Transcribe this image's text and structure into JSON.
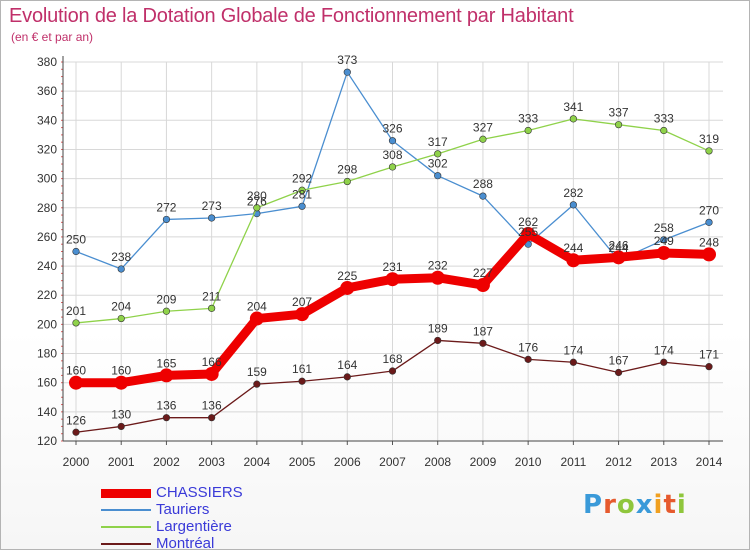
{
  "title": "Evolution de la Dotation Globale de Fonctionnement par Habitant",
  "subtitle": "(en € et par an)",
  "logo": {
    "text": "Proxiti",
    "colors": [
      "#3a9ad9",
      "#e65a2e",
      "#8fc63c",
      "#3a9ad9",
      "#f0a020",
      "#e65a2e",
      "#8fc63c"
    ]
  },
  "chart_data": {
    "type": "line",
    "x": [
      "2000",
      "2001",
      "2002",
      "2003",
      "2004",
      "2005",
      "2006",
      "2007",
      "2008",
      "2009",
      "2010",
      "2011",
      "2012",
      "2013",
      "2014"
    ],
    "ylim": [
      120,
      380
    ],
    "yticks": [
      120,
      140,
      160,
      180,
      200,
      220,
      240,
      260,
      280,
      300,
      320,
      340,
      360,
      380
    ],
    "grid": true,
    "legend_position": "bottom-left",
    "series": [
      {
        "name": "Tauriers",
        "color": "#4a8ed0",
        "highlight": false,
        "values": [
          250,
          238,
          272,
          273,
          276,
          281,
          373,
          326,
          302,
          288,
          255,
          282,
          244,
          258,
          270
        ],
        "labels": [
          "250",
          "238",
          "272",
          "273",
          "276",
          "281",
          "373",
          "326",
          "302",
          "288",
          "255",
          "282",
          "244",
          "258",
          "270"
        ]
      },
      {
        "name": "Largentière",
        "color": "#8fd24a",
        "highlight": false,
        "values": [
          201,
          204,
          209,
          211,
          280,
          292,
          298,
          308,
          317,
          327,
          333,
          341,
          337,
          333,
          319
        ],
        "labels": [
          "201",
          "204",
          "209",
          "211",
          "280",
          "292",
          "298",
          "308",
          "317",
          "327",
          "333",
          "341",
          "337",
          "333",
          "319"
        ]
      },
      {
        "name": "Montréal",
        "color": "#6b1a1a",
        "highlight": false,
        "values": [
          126,
          130,
          136,
          136,
          159,
          161,
          164,
          168,
          189,
          187,
          176,
          174,
          167,
          174,
          171
        ],
        "labels": [
          "126",
          "130",
          "136",
          "136",
          "159",
          "161",
          "164",
          "168",
          "189",
          "187",
          "176",
          "174",
          "167",
          "174",
          "171"
        ]
      },
      {
        "name": "CHASSIERS",
        "color": "#ee0000",
        "highlight": true,
        "values": [
          160,
          160,
          165,
          166,
          204,
          207,
          225,
          231,
          232,
          227,
          262,
          244,
          246,
          249,
          248
        ],
        "labels": [
          "160",
          "160",
          "165",
          "166",
          "204",
          "207",
          "225",
          "231",
          "232",
          "227",
          "262",
          "244",
          "246",
          "249",
          "248"
        ]
      }
    ],
    "legend_order": [
      "CHASSIERS",
      "Tauriers",
      "Largentière",
      "Montréal"
    ]
  }
}
